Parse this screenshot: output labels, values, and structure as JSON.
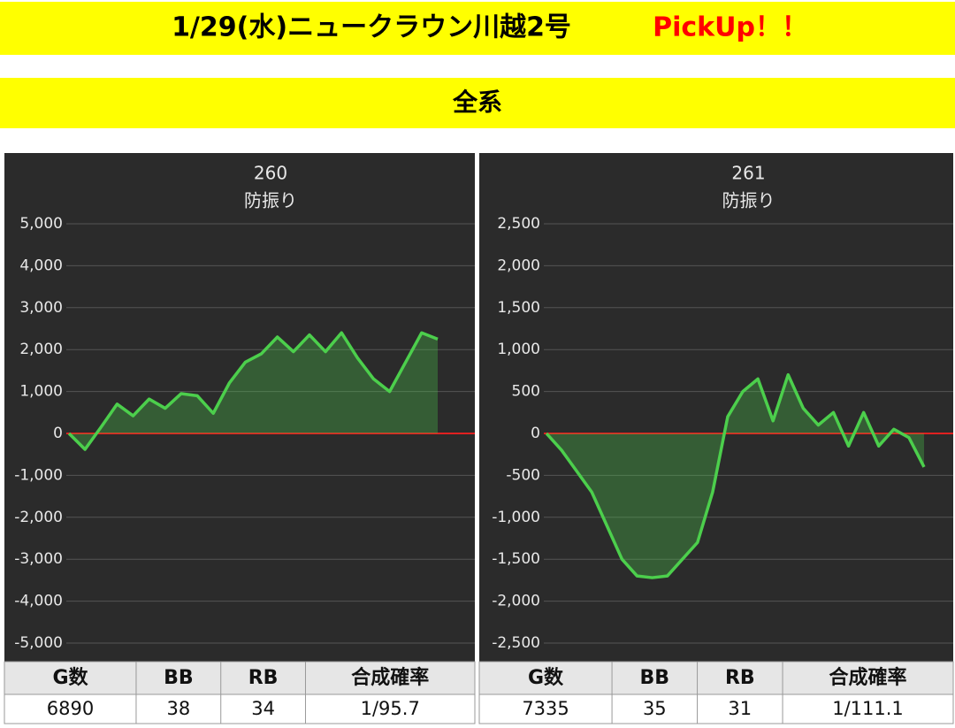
{
  "header": {
    "title": "1/29(水)ニュークラウン川越2号",
    "pickup": "PickUp！！"
  },
  "subheader": "全系",
  "chart_data": [
    {
      "type": "line",
      "title": "260",
      "subtitle": "防振り",
      "series": [
        {
          "color": "#4ccf4c",
          "values": [
            0,
            -380,
            150,
            700,
            420,
            820,
            600,
            950,
            900,
            480,
            1200,
            1700,
            1900,
            2300,
            1950,
            2350,
            1950,
            2400,
            1800,
            1300,
            1000,
            1700,
            2400,
            2250
          ]
        }
      ],
      "ylim": [
        -5000,
        5000
      ],
      "yticks": [
        {
          "value": -5000,
          "label": "-5,000"
        },
        {
          "value": -4000,
          "label": "-4,000"
        },
        {
          "value": -3000,
          "label": "-3,000"
        },
        {
          "value": -2000,
          "label": "-2,000"
        },
        {
          "value": -1000,
          "label": "-1,000"
        },
        0,
        {
          "value": 1000,
          "label": "1,000"
        },
        {
          "value": 2000,
          "label": "2,000"
        },
        {
          "value": 3000,
          "label": "3,000"
        },
        {
          "value": 4000,
          "label": "4,000"
        },
        {
          "value": 5000,
          "label": "5,000"
        }
      ],
      "grid": true
    },
    {
      "type": "line",
      "title": "261",
      "subtitle": "防振り",
      "series": [
        {
          "color": "#4ccf4c",
          "values": [
            0,
            -200,
            -450,
            -700,
            -1100,
            -1500,
            -1700,
            -1720,
            -1700,
            -1500,
            -1300,
            -700,
            200,
            500,
            650,
            150,
            700,
            300,
            100,
            250,
            -150,
            250,
            -150,
            50,
            -50,
            -400
          ]
        }
      ],
      "ylim": [
        -2500,
        2500
      ],
      "yticks": [
        {
          "value": -2500,
          "label": "-2,500"
        },
        {
          "value": -2000,
          "label": "-2,000"
        },
        {
          "value": -1500,
          "label": "-1,500"
        },
        {
          "value": -1000,
          "label": "-1,000"
        },
        -500,
        0,
        500,
        {
          "value": 1000,
          "label": "1,000"
        },
        {
          "value": 1500,
          "label": "1,500"
        },
        {
          "value": 2000,
          "label": "2,000"
        },
        {
          "value": 2500,
          "label": "2,500"
        }
      ],
      "grid": true
    }
  ],
  "tables": [
    {
      "header": [
        "G数",
        "BB",
        "RB",
        "合成確率"
      ],
      "row": [
        6890,
        38,
        34,
        "1/95.7"
      ]
    },
    {
      "header": [
        "G数",
        "BB",
        "RB",
        "合成確率"
      ],
      "row": [
        7335,
        35,
        31,
        "1/111.1"
      ]
    }
  ]
}
